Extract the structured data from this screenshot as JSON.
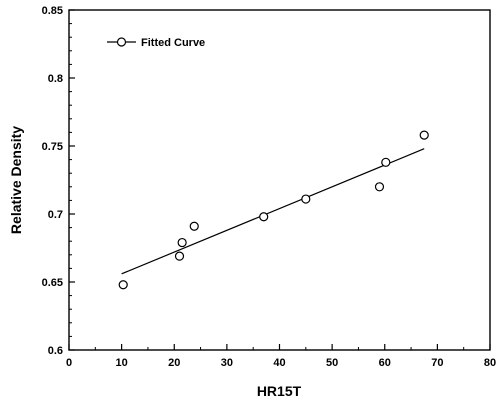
{
  "chart_data": {
    "type": "scatter",
    "xlabel": "HR15T",
    "ylabel": "Relative Density",
    "xlim": [
      0,
      80
    ],
    "ylim": [
      0.6,
      0.85
    ],
    "x_ticks": [
      0,
      10,
      20,
      30,
      40,
      50,
      60,
      70,
      80
    ],
    "y_ticks": [
      0.6,
      0.65,
      0.7,
      0.75,
      0.8,
      0.85
    ],
    "x_tick_labels": [
      "0",
      "10",
      "20",
      "30",
      "40",
      "50",
      "60",
      "70",
      "80"
    ],
    "y_tick_labels": [
      "0.6",
      "0.65",
      "0.7",
      "0.75",
      "0.8",
      "0.85"
    ],
    "grid": false,
    "legend_position": "top-left",
    "legend_label": "Fitted Curve",
    "series": [
      {
        "name": "Fitted Curve",
        "points": [
          {
            "x": 10.3,
            "y": 0.648
          },
          {
            "x": 21.0,
            "y": 0.669
          },
          {
            "x": 21.5,
            "y": 0.679
          },
          {
            "x": 23.8,
            "y": 0.691
          },
          {
            "x": 37.0,
            "y": 0.698
          },
          {
            "x": 45.0,
            "y": 0.711
          },
          {
            "x": 59.0,
            "y": 0.72
          },
          {
            "x": 60.2,
            "y": 0.738
          },
          {
            "x": 67.5,
            "y": 0.758
          }
        ],
        "fit_line": [
          {
            "x": 10.0,
            "y": 0.656
          },
          {
            "x": 67.5,
            "y": 0.748
          }
        ]
      }
    ]
  }
}
